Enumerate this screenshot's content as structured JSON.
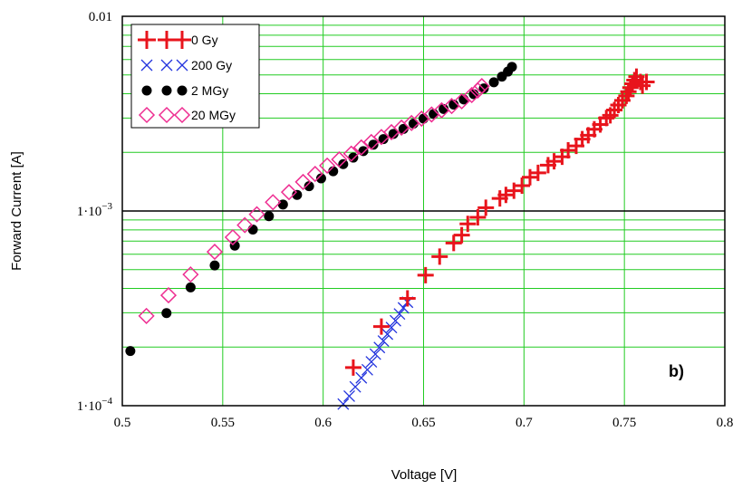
{
  "chart_data": {
    "type": "scatter",
    "title": "",
    "xlabel": "Voltage [V]",
    "ylabel": "Forward Current [A]",
    "xlim": [
      0.5,
      0.8
    ],
    "ylim": [
      0.0001,
      0.01
    ],
    "yscale": "log",
    "x_ticks": [
      "0.5",
      "0.55",
      "0.6",
      "0.65",
      "0.7",
      "0.75",
      "0.8"
    ],
    "y_ticks": [
      {
        "pre": "0.01",
        "sup": ""
      },
      {
        "pre": "1·10",
        "sup": "−3"
      },
      {
        "pre": "1·10",
        "sup": "−4"
      }
    ],
    "grid": true,
    "legend_position": "top-left",
    "panel_label": "b)",
    "series": [
      {
        "name": "0 Gy",
        "marker": "plus",
        "color": "#e8141c",
        "points": [
          [
            0.615,
            0.000157
          ],
          [
            0.629,
            0.000255
          ],
          [
            0.642,
            0.000356
          ],
          [
            0.651,
            0.000468
          ],
          [
            0.658,
            0.000583
          ],
          [
            0.665,
            0.000685
          ],
          [
            0.669,
            0.000752
          ],
          [
            0.672,
            0.000858
          ],
          [
            0.677,
            0.000928
          ],
          [
            0.681,
            0.00104
          ],
          [
            0.688,
            0.00116
          ],
          [
            0.691,
            0.00121
          ],
          [
            0.695,
            0.00127
          ],
          [
            0.699,
            0.00135
          ],
          [
            0.703,
            0.00149
          ],
          [
            0.707,
            0.00157
          ],
          [
            0.712,
            0.00172
          ],
          [
            0.715,
            0.0018
          ],
          [
            0.719,
            0.0019
          ],
          [
            0.722,
            0.00205
          ],
          [
            0.726,
            0.00216
          ],
          [
            0.729,
            0.00234
          ],
          [
            0.732,
            0.00245
          ],
          [
            0.735,
            0.00263
          ],
          [
            0.738,
            0.00278
          ],
          [
            0.741,
            0.003
          ],
          [
            0.743,
            0.0031
          ],
          [
            0.745,
            0.0033
          ],
          [
            0.747,
            0.0035
          ],
          [
            0.749,
            0.0037
          ],
          [
            0.751,
            0.0039
          ],
          [
            0.752,
            0.0041
          ],
          [
            0.753,
            0.0043
          ],
          [
            0.754,
            0.0045
          ],
          [
            0.755,
            0.0047
          ],
          [
            0.756,
            0.0049
          ],
          [
            0.758,
            0.0046
          ],
          [
            0.759,
            0.0044
          ],
          [
            0.761,
            0.0046
          ]
        ]
      },
      {
        "name": "200 Gy",
        "marker": "cross",
        "color": "#2233dd",
        "points": [
          [
            0.61,
            0.000102
          ],
          [
            0.613,
            0.000112
          ],
          [
            0.616,
            0.000125
          ],
          [
            0.619,
            0.000139
          ],
          [
            0.622,
            0.000153
          ],
          [
            0.624,
            0.000168
          ],
          [
            0.626,
            0.000184
          ],
          [
            0.628,
            0.000199
          ],
          [
            0.63,
            0.000215
          ],
          [
            0.632,
            0.000233
          ],
          [
            0.634,
            0.000252
          ],
          [
            0.636,
            0.000273
          ],
          [
            0.638,
            0.000296
          ],
          [
            0.64,
            0.000318
          ],
          [
            0.642,
            0.00034
          ]
        ]
      },
      {
        "name": "2 MGy",
        "marker": "dot",
        "color": "#000000",
        "points": [
          [
            0.504,
            0.000191
          ],
          [
            0.522,
            0.000299
          ],
          [
            0.534,
            0.000405
          ],
          [
            0.546,
            0.000525
          ],
          [
            0.556,
            0.000664
          ],
          [
            0.565,
            0.000803
          ],
          [
            0.573,
            0.00094
          ],
          [
            0.58,
            0.00108
          ],
          [
            0.587,
            0.00121
          ],
          [
            0.593,
            0.00134
          ],
          [
            0.599,
            0.00147
          ],
          [
            0.605,
            0.0016
          ],
          [
            0.61,
            0.00174
          ],
          [
            0.615,
            0.00188
          ],
          [
            0.62,
            0.00203
          ],
          [
            0.625,
            0.00219
          ],
          [
            0.63,
            0.00234
          ],
          [
            0.635,
            0.00249
          ],
          [
            0.64,
            0.00264
          ],
          [
            0.645,
            0.00281
          ],
          [
            0.65,
            0.00298
          ],
          [
            0.655,
            0.00315
          ],
          [
            0.66,
            0.00334
          ],
          [
            0.665,
            0.00352
          ],
          [
            0.67,
            0.00374
          ],
          [
            0.675,
            0.00398
          ],
          [
            0.68,
            0.00426
          ],
          [
            0.685,
            0.00458
          ],
          [
            0.689,
            0.0049
          ],
          [
            0.692,
            0.0052
          ],
          [
            0.694,
            0.0055
          ]
        ]
      },
      {
        "name": "20 MGy",
        "marker": "diamond",
        "color": "#ee2d91",
        "points": [
          [
            0.512,
            0.000289
          ],
          [
            0.523,
            0.000369
          ],
          [
            0.534,
            0.000472
          ],
          [
            0.546,
            0.000617
          ],
          [
            0.555,
            0.000733
          ],
          [
            0.561,
            0.000846
          ],
          [
            0.567,
            0.000962
          ],
          [
            0.575,
            0.00111
          ],
          [
            0.583,
            0.00125
          ],
          [
            0.59,
            0.00141
          ],
          [
            0.596,
            0.00155
          ],
          [
            0.602,
            0.00171
          ],
          [
            0.608,
            0.00184
          ],
          [
            0.614,
            0.00197
          ],
          [
            0.619,
            0.00212
          ],
          [
            0.624,
            0.00226
          ],
          [
            0.629,
            0.0024
          ],
          [
            0.634,
            0.00254
          ],
          [
            0.639,
            0.00268
          ],
          [
            0.644,
            0.00283
          ],
          [
            0.649,
            0.00298
          ],
          [
            0.654,
            0.00313
          ],
          [
            0.659,
            0.00329
          ],
          [
            0.664,
            0.00346
          ],
          [
            0.669,
            0.00366
          ],
          [
            0.674,
            0.00394
          ],
          [
            0.677,
            0.00416
          ],
          [
            0.679,
            0.00438
          ]
        ]
      }
    ]
  }
}
